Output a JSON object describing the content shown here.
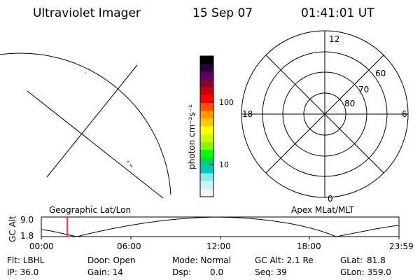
{
  "header": {
    "title": "Ultraviolet Imager",
    "date": "15 Sep 07",
    "time": "01:41:01 UT"
  },
  "colorbar": {
    "unit_label": "photon cm⁻²s⁻¹",
    "ticks": [
      "100",
      "10"
    ],
    "colors": [
      "#000000",
      "#2a0040",
      "#5a0060",
      "#8a0030",
      "#c80000",
      "#ff0000",
      "#ff5000",
      "#ff9600",
      "#ffc800",
      "#ffff00",
      "#c8ff00",
      "#80ff00",
      "#00ff00",
      "#00d070",
      "#00c8c8",
      "#8aeaea",
      "#c8f4f4",
      "#f4f4f4"
    ]
  },
  "polar_plot": {
    "lat_labels": [
      "80",
      "70",
      "60"
    ],
    "mlt_labels": [
      "12",
      "18",
      "6",
      "0"
    ]
  },
  "timeline": {
    "y_axis_label": "GC Alt",
    "y_ticks": [
      "9.0",
      "1.8"
    ],
    "left_label": "Geographic Lat/Lon",
    "right_label": "Apex MLat/MLT",
    "x_ticks": [
      "00:00",
      "06:00",
      "12:00",
      "18:00",
      "23:59"
    ],
    "marker_time": "01:41",
    "marker_color": "#ff0000"
  },
  "status": {
    "flt_label": "Flt: LBHL",
    "door_label": "Door: Open",
    "mode_label": "Mode: Normal",
    "gcalt_label": "GC Alt: 2.1 Re",
    "glat_label": "GLat:",
    "glat_value": "81.8",
    "ip_label": "IP: 36.0",
    "gain_label": "Gain: 14",
    "dsp_label": "Dsp:",
    "dsp_value": "0.0",
    "seq_label": "Seq: 39",
    "glon_label": "GLon: 359.0"
  }
}
